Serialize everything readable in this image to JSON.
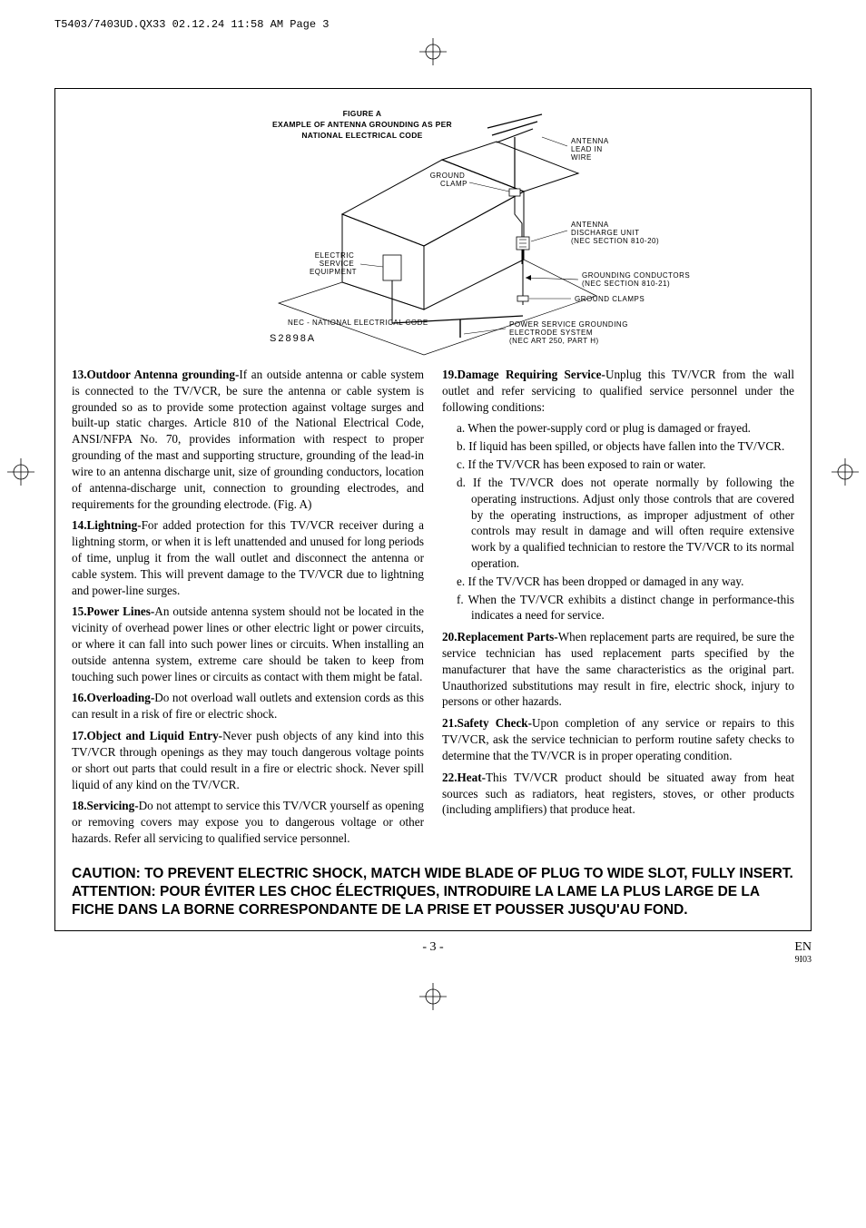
{
  "header_line": "T5403/7403UD.QX33  02.12.24  11:58 AM  Page 3",
  "figure": {
    "title_line1": "FIGURE A",
    "title_line2": "EXAMPLE OF ANTENNA GROUNDING AS PER",
    "title_line3": "NATIONAL ELECTRICAL CODE",
    "antenna_lead": "ANTENNA\nLEAD IN\nWIRE",
    "ground_clamp": "GROUND\nCLAMP",
    "antenna_discharge": "ANTENNA\nDISCHARGE UNIT\n(NEC SECTION 810-20)",
    "electric_service": "ELECTRIC\nSERVICE\nEQUIPMENT",
    "grounding_conductors": "GROUNDING CONDUCTORS\n(NEC SECTION 810-21)",
    "ground_clamps": "GROUND CLAMPS",
    "power_service": "POWER SERVICE GROUNDING\nELECTRODE SYSTEM\n(NEC ART 250, PART H)",
    "nec_footer": "NEC - NATIONAL ELECTRICAL CODE",
    "code": "S2898A"
  },
  "left_items": [
    {
      "num": "13.",
      "title": "Outdoor Antenna grounding-",
      "body": "If an outside antenna or cable system is connected to the TV/VCR, be sure the antenna or cable system is grounded so as to provide some protection against voltage surges and built-up static charges. Article 810 of the National Electrical Code, ANSI/NFPA No. 70, provides information with respect to proper grounding of the mast and supporting structure, grounding of the lead-in wire to an antenna discharge unit, size of grounding conductors, location of antenna-discharge unit, connection to grounding electrodes, and requirements for the grounding electrode. (Fig. A)"
    },
    {
      "num": "14.",
      "title": "Lightning-",
      "body": "For added protection for this TV/VCR receiver during a lightning storm, or when it is left unattended and unused for long periods of time, unplug it from the wall outlet and disconnect the antenna or cable system. This will prevent damage to the TV/VCR due to lightning and power-line surges."
    },
    {
      "num": "15.",
      "title": "Power Lines-",
      "body": "An outside antenna system should not be located in the vicinity of overhead power lines or other electric light or power circuits, or where it can fall into such power lines or circuits. When installing an outside antenna system, extreme care should be taken to keep from touching such power lines or circuits as contact with them might be fatal."
    },
    {
      "num": "16.",
      "title": "Overloading-",
      "body": "Do not overload wall outlets and extension cords as this can result in a risk of fire or electric shock."
    },
    {
      "num": "17.",
      "title": "Object and Liquid Entry-",
      "body": "Never push objects of any kind into this TV/VCR through openings as they may touch dangerous voltage points or short out parts that could result in a fire or electric shock. Never spill liquid of any kind on the TV/VCR."
    },
    {
      "num": "18.",
      "title": "Servicing-",
      "body": "Do not attempt to service this TV/VCR yourself as opening or removing covers may expose you to dangerous voltage or other hazards. Refer all servicing to qualified service personnel."
    }
  ],
  "right_items": [
    {
      "num": "19.",
      "title": "Damage Requiring Service-",
      "body": "Unplug this TV/VCR from the wall outlet and refer servicing to qualified service personnel under the following conditions:"
    }
  ],
  "sublist": [
    {
      "l": "a.",
      "t": "When the power-supply cord or plug is damaged or frayed."
    },
    {
      "l": "b.",
      "t": "If liquid has been spilled, or objects have fallen into the TV/VCR."
    },
    {
      "l": "c.",
      "t": "If the TV/VCR has been exposed to rain or water."
    },
    {
      "l": "d.",
      "t": "If the TV/VCR does not operate normally by following the operating instructions. Adjust only those controls that are covered by the operating instructions, as improper adjustment of other controls may result in damage and will often require extensive work by a qualified technician to restore the TV/VCR to its normal operation."
    },
    {
      "l": "e.",
      "t": "If the TV/VCR has been dropped or damaged in any way."
    },
    {
      "l": "f.",
      "t": "When the TV/VCR exhibits a distinct change in performance-this indicates a need for service."
    }
  ],
  "right_items2": [
    {
      "num": "20.",
      "title": "Replacement Parts-",
      "body": "When replacement parts are required, be sure the service technician has used replacement parts specified by the manufacturer that have the same characteristics as the original part. Unauthorized substitutions may result in fire, electric shock, injury to persons or other hazards."
    },
    {
      "num": "21.",
      "title": "Safety Check-",
      "body": "Upon completion of any service or repairs to this TV/VCR, ask the service technician to perform routine safety checks to determine that the TV/VCR is in proper operating condition."
    },
    {
      "num": "22.",
      "title": "Heat-",
      "body": "This TV/VCR product should be situated away from heat sources such as radiators, heat registers, stoves, or other products (including amplifiers) that produce heat."
    }
  ],
  "caution": {
    "line1": "CAUTION: TO PREVENT ELECTRIC SHOCK, MATCH WIDE BLADE OF PLUG TO WIDE SLOT, FULLY INSERT.",
    "line2": "ATTENTION: POUR ÉVITER LES CHOC ÉLECTRIQUES, INTRODUIRE LA LAME LA PLUS LARGE DE LA FICHE DANS LA BORNE CORRESPONDANTE DE LA PRISE ET POUSSER JUSQU'AU FOND."
  },
  "footer": {
    "page": "- 3 -",
    "lang": "EN",
    "rev": "9I03"
  }
}
